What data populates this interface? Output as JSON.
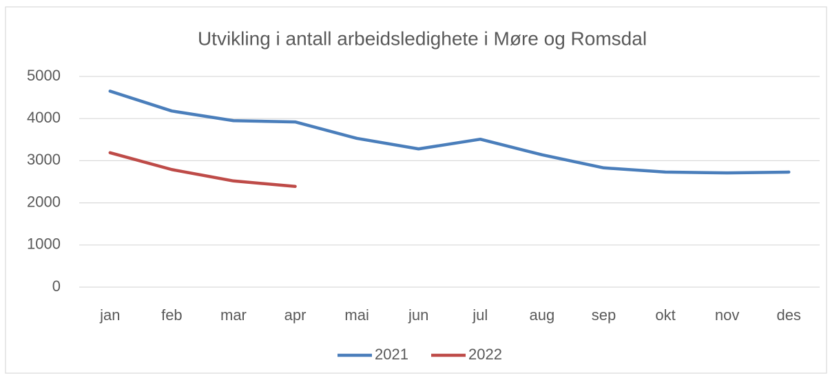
{
  "chart_data": {
    "type": "line",
    "title": "Utvikling i antall arbeidsledighete i Møre og Romsdal",
    "categories": [
      "jan",
      "feb",
      "mar",
      "apr",
      "mai",
      "jun",
      "jul",
      "aug",
      "sep",
      "okt",
      "nov",
      "des"
    ],
    "series": [
      {
        "name": "2021",
        "color": "#4a7ebb",
        "values": [
          4650,
          4180,
          3950,
          3920,
          3530,
          3280,
          3510,
          3140,
          2830,
          2730,
          2710,
          2730
        ]
      },
      {
        "name": "2022",
        "color": "#be4b48",
        "values": [
          3190,
          2790,
          2520,
          2390,
          null,
          null,
          null,
          null,
          null,
          null,
          null,
          null
        ]
      }
    ],
    "ylim": [
      0,
      5000
    ],
    "yticks": [
      0,
      1000,
      2000,
      3000,
      4000,
      5000
    ],
    "grid": true,
    "legend": "bottom"
  }
}
